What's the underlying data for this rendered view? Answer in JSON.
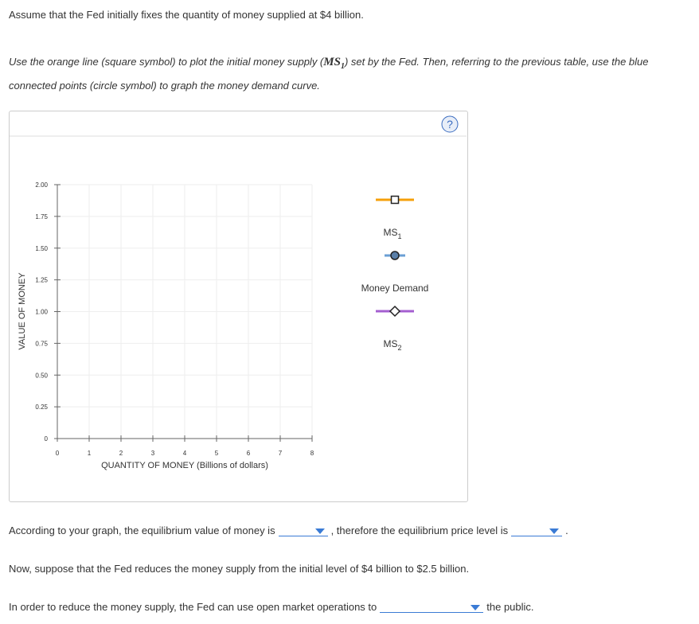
{
  "intro": "Assume that the Fed initially fixes the quantity of money supplied at $4 billion.",
  "instruction": {
    "before": "Use the orange line (square symbol) to plot the initial money supply (",
    "symbol": "MS",
    "sub": "1",
    "after": ") set by the Fed. Then, referring to the previous table, use the blue connected points (circle symbol) to graph the money demand curve."
  },
  "graph": {
    "help": "?",
    "y_label": "VALUE OF MONEY",
    "x_label": "QUANTITY OF MONEY (Billions of dollars)",
    "ylim": [
      0,
      2
    ],
    "yticks": [
      {
        "value": 0,
        "label": "0"
      },
      {
        "value": 0.25,
        "label": "0.25"
      },
      {
        "value": 0.5,
        "label": "0.50"
      },
      {
        "value": 0.75,
        "label": "0.75"
      },
      {
        "value": 1,
        "label": "1.00"
      },
      {
        "value": 1.25,
        "label": "1.25"
      },
      {
        "value": 1.5,
        "label": "1.50"
      },
      {
        "value": 1.75,
        "label": "1.75"
      },
      {
        "value": 2,
        "label": "2.00"
      }
    ],
    "xlim": [
      0,
      8
    ],
    "xticks": [
      0,
      1,
      2,
      3,
      4,
      5,
      6,
      7,
      8
    ],
    "legend": [
      {
        "name": "MS",
        "sub": "1",
        "color": "#f5a00a",
        "symbol": "square"
      },
      {
        "name": "Money Demand",
        "color": "#6a9fd4",
        "symbol": "circle"
      },
      {
        "name": "MS",
        "sub": "2",
        "color": "#a45fd0",
        "symbol": "diamond"
      }
    ]
  },
  "questions": [
    {
      "before": "According to your graph, the equilibrium value of money is",
      "middle": ", therefore the equilibrium price level is",
      "after": "."
    },
    {
      "text": "Now, suppose that the Fed reduces the money supply from the initial level of $4 billion to $2.5 billion."
    },
    {
      "before": "In order to reduce the money supply, the Fed can use open market operations to",
      "after": "the public."
    }
  ]
}
